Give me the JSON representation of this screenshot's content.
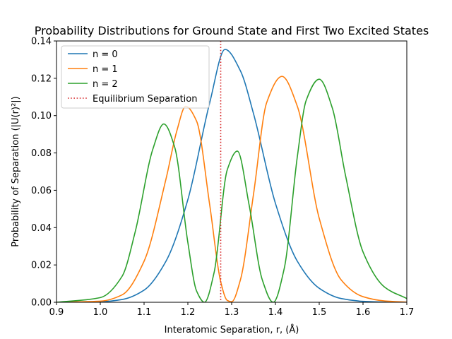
{
  "chart_data": {
    "type": "line",
    "title": "Probability Distributions for Ground State and First Two Excited States",
    "xlabel": "Interatomic Separation, r, (Å)",
    "ylabel": "Probability of Separation (|U(r)²|)",
    "xlim": [
      0.9,
      1.7
    ],
    "ylim": [
      0.0,
      0.14
    ],
    "x_ticks": [
      "0.9",
      "1.0",
      "1.1",
      "1.2",
      "1.3",
      "1.4",
      "1.5",
      "1.6",
      "1.7"
    ],
    "y_ticks": [
      "0.00",
      "0.02",
      "0.04",
      "0.06",
      "0.08",
      "0.10",
      "0.12",
      "0.14"
    ],
    "grid": false,
    "legend_position": "top-left",
    "equilibrium_separation": 1.275,
    "series": [
      {
        "name": "n = 0",
        "color": "#1f77b4",
        "x": [
          0.9,
          1.0,
          1.05,
          1.1,
          1.15,
          1.2,
          1.25,
          1.285,
          1.32,
          1.35,
          1.4,
          1.45,
          1.5,
          1.55,
          1.6,
          1.65,
          1.7
        ],
        "y": [
          0.0,
          0.0003,
          0.0015,
          0.0065,
          0.022,
          0.055,
          0.107,
          0.1355,
          0.124,
          0.101,
          0.053,
          0.022,
          0.0075,
          0.002,
          0.0005,
          0.0001,
          0.0
        ]
      },
      {
        "name": "n = 1",
        "color": "#ff7f0e",
        "x": [
          0.9,
          1.0,
          1.05,
          1.1,
          1.15,
          1.175,
          1.195,
          1.22,
          1.25,
          1.275,
          1.29,
          1.3,
          1.32,
          1.35,
          1.38,
          1.415,
          1.45,
          1.5,
          1.55,
          1.6,
          1.65,
          1.7
        ],
        "y": [
          0.0,
          0.0006,
          0.004,
          0.022,
          0.066,
          0.092,
          0.105,
          0.097,
          0.052,
          0.011,
          0.001,
          0.0003,
          0.012,
          0.058,
          0.107,
          0.121,
          0.105,
          0.045,
          0.012,
          0.003,
          0.0007,
          0.0001
        ]
      },
      {
        "name": "n = 2",
        "color": "#2ca02c",
        "x": [
          0.9,
          1.0,
          1.05,
          1.08,
          1.12,
          1.145,
          1.17,
          1.2,
          1.22,
          1.238,
          1.26,
          1.29,
          1.313,
          1.34,
          1.37,
          1.395,
          1.42,
          1.45,
          1.47,
          1.5,
          1.53,
          1.56,
          1.6,
          1.65,
          1.7
        ],
        "y": [
          0.0,
          0.0025,
          0.014,
          0.038,
          0.082,
          0.0955,
          0.083,
          0.032,
          0.006,
          0.0,
          0.016,
          0.071,
          0.081,
          0.052,
          0.012,
          0.0,
          0.018,
          0.078,
          0.108,
          0.1195,
          0.104,
          0.068,
          0.027,
          0.008,
          0.002
        ]
      }
    ],
    "annotation": {
      "name": "Equilibrium Separation",
      "color": "#d62728",
      "style": "dotted"
    }
  }
}
